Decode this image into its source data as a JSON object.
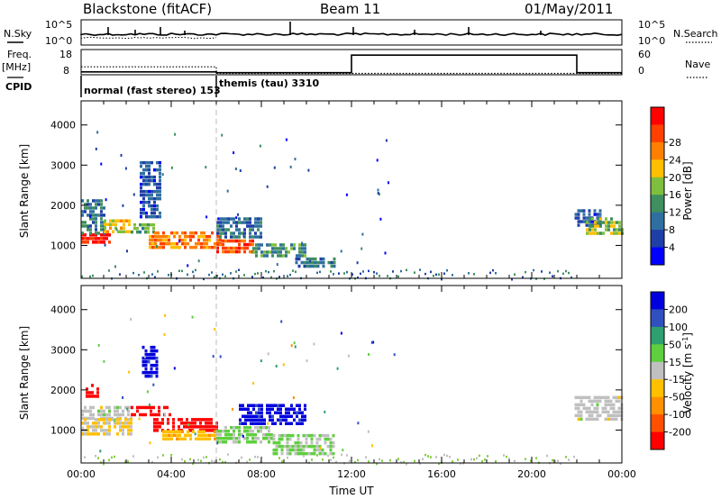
{
  "header": {
    "station": "Blackstone (fitACF)",
    "beam": "Beam 11",
    "date": "01/May/2011"
  },
  "status_panels": {
    "nsky_label": "N.Sky",
    "nsearch_label": "N.Search",
    "nsky_ticks": [
      "10^5",
      "10^0"
    ],
    "nsearch_ticks": [
      "10^5",
      "10^0"
    ],
    "freq_label": "Freq.",
    "freq_unit": "[MHz]",
    "freq_ticks": [
      "18",
      "8"
    ],
    "nave_label": "Nave",
    "nave_ticks": [
      "60",
      "0"
    ],
    "cpid_label": "CPID",
    "cpid_segments": [
      {
        "label": "normal (fast stereo) 153",
        "start_hour": 0,
        "end_hour": 6
      },
      {
        "label": "themis (tau) 3310",
        "start_hour": 6,
        "end_hour": 24
      }
    ],
    "freq_series": [
      [
        0,
        11
      ],
      [
        6,
        11
      ],
      [
        6,
        8.2
      ],
      [
        24,
        8.2
      ]
    ],
    "nave_series": [
      [
        0,
        5
      ],
      [
        6,
        5
      ],
      [
        6,
        3
      ],
      [
        12,
        3
      ],
      [
        12,
        48
      ],
      [
        22,
        48
      ],
      [
        22,
        3
      ],
      [
        24,
        3
      ]
    ]
  },
  "colors": {
    "power": [
      "#0000ff",
      "#1f3fa8",
      "#2f6f9f",
      "#3f8f5f",
      "#7fbf3f",
      "#ffbf00",
      "#ff8000",
      "#ff4000",
      "#ff0000"
    ],
    "velocity": [
      "#0000dd",
      "#3050c0",
      "#2f9f6f",
      "#5fcf3f",
      "#c0c0c0",
      "#ffc000",
      "#ff9000",
      "#ff5000",
      "#ff0000"
    ]
  },
  "chart_data": [
    {
      "type": "heatmap",
      "name": "power-panel",
      "ylabel": "Slant Range [km]",
      "xlabel": "",
      "xlim": [
        0,
        24
      ],
      "ylim": [
        180,
        4600
      ],
      "yticks": [
        "1000",
        "2000",
        "3000",
        "4000"
      ],
      "colorbar": {
        "label": "Power [dB]",
        "ticks": [
          "4",
          "8",
          "12",
          "16",
          "20",
          "24",
          "28"
        ],
        "range": [
          0,
          32
        ]
      },
      "echo_regions": [
        {
          "t0": 0.0,
          "t1": 1.3,
          "r0": 1050,
          "r1": 1300,
          "value": 30
        },
        {
          "t0": 0.0,
          "t1": 1.0,
          "r0": 1300,
          "r1": 2150,
          "value": 10
        },
        {
          "t0": 1.0,
          "t1": 2.2,
          "r0": 1350,
          "r1": 1650,
          "value": 20
        },
        {
          "t0": 2.2,
          "t1": 3.2,
          "r0": 1300,
          "r1": 1550,
          "value": 14
        },
        {
          "t0": 2.6,
          "t1": 3.5,
          "r0": 1700,
          "r1": 3100,
          "value": 6
        },
        {
          "t0": 3.0,
          "t1": 6.2,
          "r0": 950,
          "r1": 1350,
          "value": 24
        },
        {
          "t0": 6.0,
          "t1": 7.6,
          "r0": 800,
          "r1": 1150,
          "value": 27
        },
        {
          "t0": 6.0,
          "t1": 8.0,
          "r0": 1200,
          "r1": 1700,
          "value": 9
        },
        {
          "t0": 7.6,
          "t1": 10.0,
          "r0": 700,
          "r1": 1050,
          "value": 12
        },
        {
          "t0": 9.5,
          "t1": 11.2,
          "r0": 480,
          "r1": 700,
          "value": 9
        },
        {
          "t0": 21.9,
          "t1": 23.0,
          "r0": 1500,
          "r1": 1900,
          "value": 6
        },
        {
          "t0": 22.4,
          "t1": 24.0,
          "r0": 1300,
          "r1": 1700,
          "value": 16
        }
      ],
      "ground_scatter": {
        "t0": 0,
        "t1": 22,
        "r0": 180,
        "r1": 420
      }
    },
    {
      "type": "heatmap",
      "name": "velocity-panel",
      "ylabel": "Slant Range [km]",
      "xlabel": "Time UT",
      "xlim": [
        0,
        24
      ],
      "ylim": [
        180,
        4600
      ],
      "yticks": [
        "1000",
        "2000",
        "3000",
        "4000"
      ],
      "xticks": [
        "00:00",
        "04:00",
        "08:00",
        "12:00",
        "16:00",
        "20:00",
        "00:00"
      ],
      "colorbar": {
        "label": "Velocity [m s^-1]",
        "ticks": [
          "200",
          "100",
          "50",
          "15",
          "-15",
          "-50",
          "-100",
          "-200"
        ],
        "range": [
          -250,
          250
        ]
      },
      "echo_regions": [
        {
          "t0": 0.2,
          "t1": 0.8,
          "r0": 1800,
          "r1": 2150,
          "value": -230
        },
        {
          "t0": 0.0,
          "t1": 2.2,
          "r0": 1300,
          "r1": 1600,
          "value": 0
        },
        {
          "t0": 0.0,
          "t1": 2.2,
          "r0": 900,
          "r1": 1300,
          "value": -40
        },
        {
          "t0": 2.2,
          "t1": 4.0,
          "r0": 1350,
          "r1": 1600,
          "value": -230
        },
        {
          "t0": 2.7,
          "t1": 3.4,
          "r0": 2300,
          "r1": 3100,
          "value": 220
        },
        {
          "t0": 3.2,
          "t1": 6.0,
          "r0": 1000,
          "r1": 1300,
          "value": -230
        },
        {
          "t0": 3.6,
          "t1": 6.0,
          "r0": 750,
          "r1": 1000,
          "value": -60
        },
        {
          "t0": 6.0,
          "t1": 8.5,
          "r0": 700,
          "r1": 1100,
          "value": 40
        },
        {
          "t0": 7.0,
          "t1": 10.0,
          "r0": 1150,
          "r1": 1650,
          "value": 220
        },
        {
          "t0": 8.5,
          "t1": 11.2,
          "r0": 450,
          "r1": 900,
          "value": 30
        },
        {
          "t0": 21.9,
          "t1": 24.0,
          "r0": 1300,
          "r1": 1850,
          "value": 0
        }
      ],
      "ground_scatter": {
        "t0": 0,
        "t1": 22,
        "r0": 180,
        "r1": 420
      }
    }
  ]
}
